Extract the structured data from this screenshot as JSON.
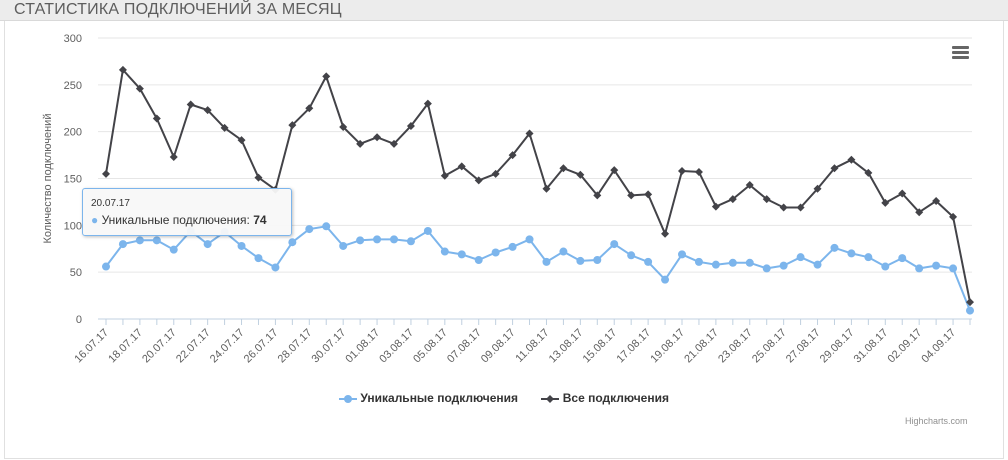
{
  "panel": {
    "title": "СТАТИСТИКА ПОДКЛЮЧЕНИЙ ЗА МЕСЯЦ"
  },
  "menu": {
    "icon": "hamburger-menu-icon"
  },
  "tooltip": {
    "date": "20.07.17",
    "series": "Уникальные подключения",
    "separator": ":",
    "value": "74"
  },
  "credits": "Highcharts.com",
  "chart_data": {
    "type": "line",
    "title": "",
    "ylabel": "Количество подключений",
    "ylim": [
      0,
      300
    ],
    "yticks": [
      "0",
      "50",
      "100",
      "150",
      "200",
      "250",
      "300"
    ],
    "grid": true,
    "legend_position": "bottom-center",
    "categories": [
      "16.07.17",
      "17.07.17",
      "18.07.17",
      "19.07.17",
      "20.07.17",
      "21.07.17",
      "22.07.17",
      "23.07.17",
      "24.07.17",
      "25.07.17",
      "26.07.17",
      "27.07.17",
      "28.07.17",
      "29.07.17",
      "30.07.17",
      "31.07.17",
      "01.08.17",
      "02.08.17",
      "03.08.17",
      "04.08.17",
      "05.08.17",
      "06.08.17",
      "07.08.17",
      "08.08.17",
      "09.08.17",
      "10.08.17",
      "11.08.17",
      "12.08.17",
      "13.08.17",
      "14.08.17",
      "15.08.17",
      "16.08.17",
      "17.08.17",
      "18.08.17",
      "19.08.17",
      "20.08.17",
      "21.08.17",
      "22.08.17",
      "23.08.17",
      "24.08.17",
      "25.08.17",
      "26.08.17",
      "27.08.17",
      "28.08.17",
      "29.08.17",
      "30.08.17",
      "31.08.17",
      "01.09.17",
      "02.09.17",
      "03.09.17",
      "04.09.17",
      "05.09.17"
    ],
    "xtick_labels": [
      "16.07.17",
      "18.07.17",
      "20.07.17",
      "22.07.17",
      "24.07.17",
      "26.07.17",
      "28.07.17",
      "30.07.17",
      "01.08.17",
      "03.08.17",
      "05.08.17",
      "07.08.17",
      "09.08.17",
      "11.08.17",
      "13.08.17",
      "15.08.17",
      "17.08.17",
      "19.08.17",
      "21.08.17",
      "23.08.17",
      "25.08.17",
      "27.08.17",
      "29.08.17",
      "31.08.17",
      "02.09.17",
      "04.09.17"
    ],
    "series": [
      {
        "name": "Уникальные подключения",
        "color": "#7cb5ec",
        "marker": "circle",
        "values": [
          56,
          80,
          84,
          84,
          74,
          94,
          80,
          93,
          78,
          65,
          55,
          82,
          96,
          99,
          78,
          84,
          85,
          85,
          83,
          94,
          72,
          69,
          63,
          71,
          77,
          85,
          61,
          72,
          62,
          63,
          80,
          68,
          61,
          42,
          69,
          61,
          58,
          60,
          60,
          54,
          57,
          66,
          58,
          76,
          70,
          66,
          56,
          65,
          54,
          57,
          54,
          9
        ]
      },
      {
        "name": "Все подключения",
        "color": "#434348",
        "marker": "diamond",
        "values": [
          155,
          266,
          246,
          214,
          173,
          229,
          223,
          204,
          191,
          151,
          138,
          207,
          225,
          259,
          205,
          187,
          194,
          187,
          206,
          230,
          153,
          163,
          148,
          155,
          175,
          198,
          139,
          161,
          154,
          132,
          159,
          132,
          133,
          91,
          158,
          157,
          120,
          128,
          143,
          128,
          119,
          119,
          139,
          161,
          170,
          156,
          124,
          134,
          114,
          126,
          109,
          18
        ]
      }
    ]
  }
}
